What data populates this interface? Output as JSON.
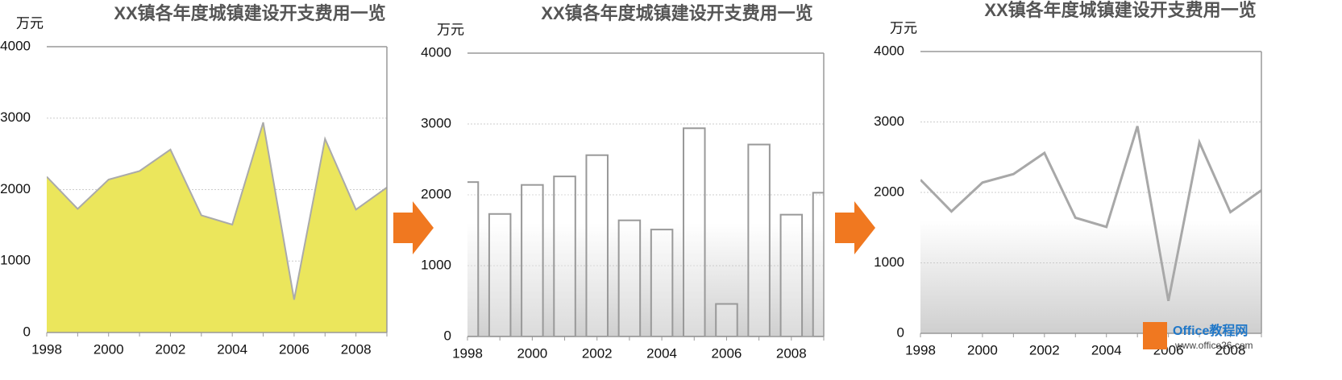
{
  "chart_data": [
    {
      "type": "area",
      "title": "XX镇各年度城镇建设开支费用一览",
      "y_label": "万元",
      "categories": [
        "1998",
        null,
        "2000",
        null,
        "2002",
        null,
        "2004",
        null,
        "2006",
        null,
        "2008",
        null
      ],
      "values": [
        2180,
        1730,
        2140,
        2260,
        2560,
        1640,
        1510,
        2940,
        460,
        2710,
        1720,
        2030
      ],
      "color": "#ebe65c",
      "ylim": [
        0,
        4000
      ],
      "yticks": [
        0,
        1000,
        2000,
        3000,
        4000
      ],
      "grid": true
    },
    {
      "type": "bar",
      "title": "XX镇各年度城镇建设开支费用一览",
      "y_label": "万元",
      "categories": [
        "1998",
        null,
        "2000",
        null,
        "2002",
        null,
        "2004",
        null,
        "2006",
        null,
        "2008",
        null
      ],
      "values": [
        2180,
        1730,
        2140,
        2260,
        2560,
        1640,
        1510,
        2940,
        460,
        2710,
        1720,
        2030
      ],
      "color": "#ffffff",
      "ylim": [
        0,
        4000
      ],
      "yticks": [
        0,
        1000,
        2000,
        3000,
        4000
      ],
      "grid": true
    },
    {
      "type": "line",
      "title": "XX镇各年度城镇建设开支费用一览",
      "y_label": "万元",
      "categories": [
        "1998",
        null,
        "2000",
        null,
        "2002",
        null,
        "2004",
        null,
        "2006",
        null,
        "2008",
        null
      ],
      "values": [
        2180,
        1730,
        2140,
        2260,
        2560,
        1640,
        1510,
        2940,
        460,
        2710,
        1720,
        2030
      ],
      "color": "#a8a8a8",
      "ylim": [
        0,
        4000
      ],
      "yticks": [
        0,
        1000,
        2000,
        3000,
        4000
      ],
      "grid": true
    }
  ],
  "watermark": {
    "name": "Office教程网",
    "url": "www.office26.com"
  }
}
